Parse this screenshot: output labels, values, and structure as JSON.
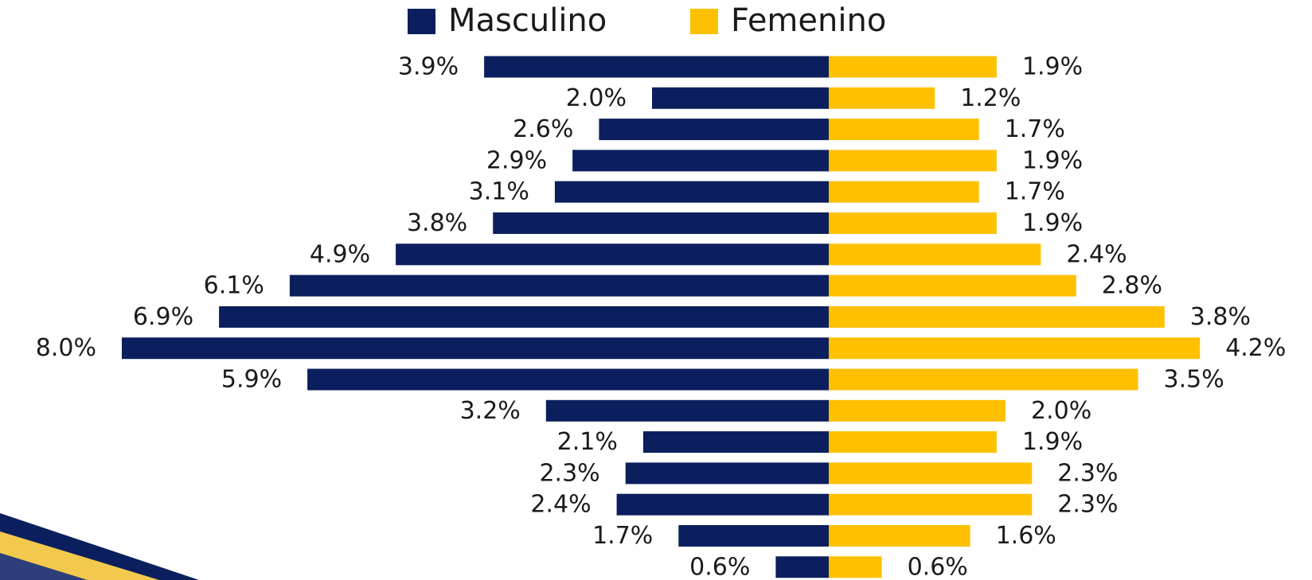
{
  "chart_data": {
    "type": "bar",
    "series": [
      {
        "name": "Masculino",
        "color": "#0b1f5e",
        "values": [
          3.9,
          2.0,
          2.6,
          2.9,
          3.1,
          3.8,
          4.9,
          6.1,
          6.9,
          8.0,
          5.9,
          3.2,
          2.1,
          2.3,
          2.4,
          1.7,
          0.6
        ],
        "value_labels": [
          "3.9%",
          "2.0%",
          "2.6%",
          "2.9%",
          "3.1%",
          "3.8%",
          "4.9%",
          "6.1%",
          "6.9%",
          "8.0%",
          "5.9%",
          "3.2%",
          "2.1%",
          "2.3%",
          "2.4%",
          "1.7%",
          "0.6%"
        ]
      },
      {
        "name": "Femenino",
        "color": "#ffc000",
        "values": [
          1.9,
          1.2,
          1.7,
          1.9,
          1.7,
          1.9,
          2.4,
          2.8,
          3.8,
          4.2,
          3.5,
          2.0,
          1.9,
          2.3,
          2.3,
          1.6,
          0.6
        ],
        "value_labels": [
          "1.9%",
          "1.2%",
          "1.7%",
          "1.9%",
          "1.7%",
          "1.9%",
          "2.4%",
          "2.8%",
          "3.8%",
          "4.2%",
          "3.5%",
          "2.0%",
          "1.9%",
          "2.3%",
          "2.3%",
          "1.6%",
          "0.6%"
        ]
      }
    ],
    "legend": "top"
  }
}
